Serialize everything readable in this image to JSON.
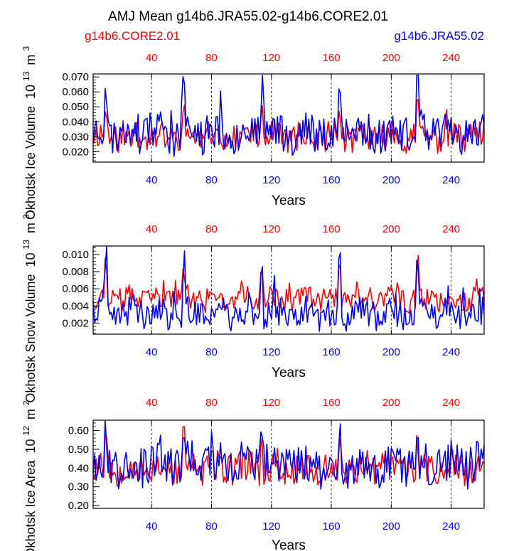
{
  "title": "AMJ Mean g14b6.JRA55.02-g14b6.CORE2.01",
  "legend": {
    "left": "g14b6.CORE2.01",
    "right": "g14b6.JRA55.02",
    "left_color": "#ff0000",
    "right_color": "#0000ff"
  },
  "chart_data": [
    {
      "type": "line",
      "name": "ice-volume",
      "ylabel": "Okhotsk Ice Volume",
      "yunit_base": "10",
      "yunit_exp": "13",
      "yunit_suffix": "m",
      "yunit_suffix_exp": "3",
      "xlabel": "Years",
      "xlim": [
        1,
        262
      ],
      "ylim": [
        0.013,
        0.072
      ],
      "yticks": [
        0.02,
        0.03,
        0.04,
        0.05,
        0.06,
        0.07
      ],
      "ytick_labels": [
        "0.020",
        "0.030",
        "0.040",
        "0.050",
        "0.060",
        "0.070"
      ],
      "xticks": [
        40,
        80,
        120,
        160,
        200,
        240
      ],
      "xtick_labels": [
        "40",
        "80",
        "120",
        "160",
        "200",
        "240"
      ],
      "series": [
        {
          "name": "g14b6.CORE2.01",
          "color": "#ff0000",
          "gen": {
            "seed": 11,
            "base": 0.03,
            "amp": 0.0095,
            "spike": 0.022,
            "floor": 0.019,
            "ceil": 0.055
          }
        },
        {
          "name": "g14b6.JRA55.02",
          "color": "#0000ff",
          "gen": {
            "seed": 23,
            "base": 0.033,
            "amp": 0.013,
            "spike": 0.04,
            "floor": 0.014,
            "ceil": 0.071
          }
        }
      ]
    },
    {
      "type": "line",
      "name": "snow-volume",
      "ylabel": "Okhotsk Snow Volume",
      "yunit_base": "10",
      "yunit_exp": "13",
      "yunit_suffix": "m",
      "yunit_suffix_exp": "3",
      "xlabel": "Years",
      "xlim": [
        1,
        262
      ],
      "ylim": [
        0.0007,
        0.011
      ],
      "yticks": [
        0.002,
        0.004,
        0.006,
        0.008,
        0.01
      ],
      "ytick_labels": [
        "0.002",
        "0.004",
        "0.006",
        "0.008",
        "0.010"
      ],
      "xticks": [
        40,
        80,
        120,
        160,
        200,
        240
      ],
      "xtick_labels": [
        "40",
        "80",
        "120",
        "160",
        "200",
        "240"
      ],
      "series": [
        {
          "name": "g14b6.CORE2.01",
          "color": "#ff0000",
          "gen": {
            "seed": 37,
            "base": 0.0048,
            "amp": 0.0014,
            "spike": 0.0052,
            "floor": 0.0025,
            "ceil": 0.0099
          }
        },
        {
          "name": "g14b6.JRA55.02",
          "color": "#0000ff",
          "gen": {
            "seed": 41,
            "base": 0.003,
            "amp": 0.0017,
            "spike": 0.0078,
            "floor": 0.0008,
            "ceil": 0.0109
          }
        }
      ]
    },
    {
      "type": "line",
      "name": "ice-area",
      "ylabel": "Okhotsk Ice Area",
      "yunit_base": "10",
      "yunit_exp": "12",
      "yunit_suffix": "m",
      "yunit_suffix_exp": "2",
      "xlabel": "Years",
      "xlim": [
        1,
        262
      ],
      "ylim": [
        0.185,
        0.655
      ],
      "yticks": [
        0.2,
        0.3,
        0.4,
        0.5,
        0.6
      ],
      "ytick_labels": [
        "0.20",
        "0.30",
        "0.40",
        "0.50",
        "0.60"
      ],
      "xticks": [
        40,
        80,
        120,
        160,
        200,
        240
      ],
      "xtick_labels": [
        "40",
        "80",
        "120",
        "160",
        "200",
        "240"
      ],
      "series": [
        {
          "name": "g14b6.CORE2.01",
          "color": "#ff0000",
          "gen": {
            "seed": 53,
            "base": 0.4,
            "amp": 0.085,
            "spike": 0.2,
            "floor": 0.27,
            "ceil": 0.62
          }
        },
        {
          "name": "g14b6.JRA55.02",
          "color": "#0000ff",
          "gen": {
            "seed": 67,
            "base": 0.42,
            "amp": 0.11,
            "spike": 0.2,
            "floor": 0.19,
            "ceil": 0.65
          }
        }
      ]
    }
  ]
}
